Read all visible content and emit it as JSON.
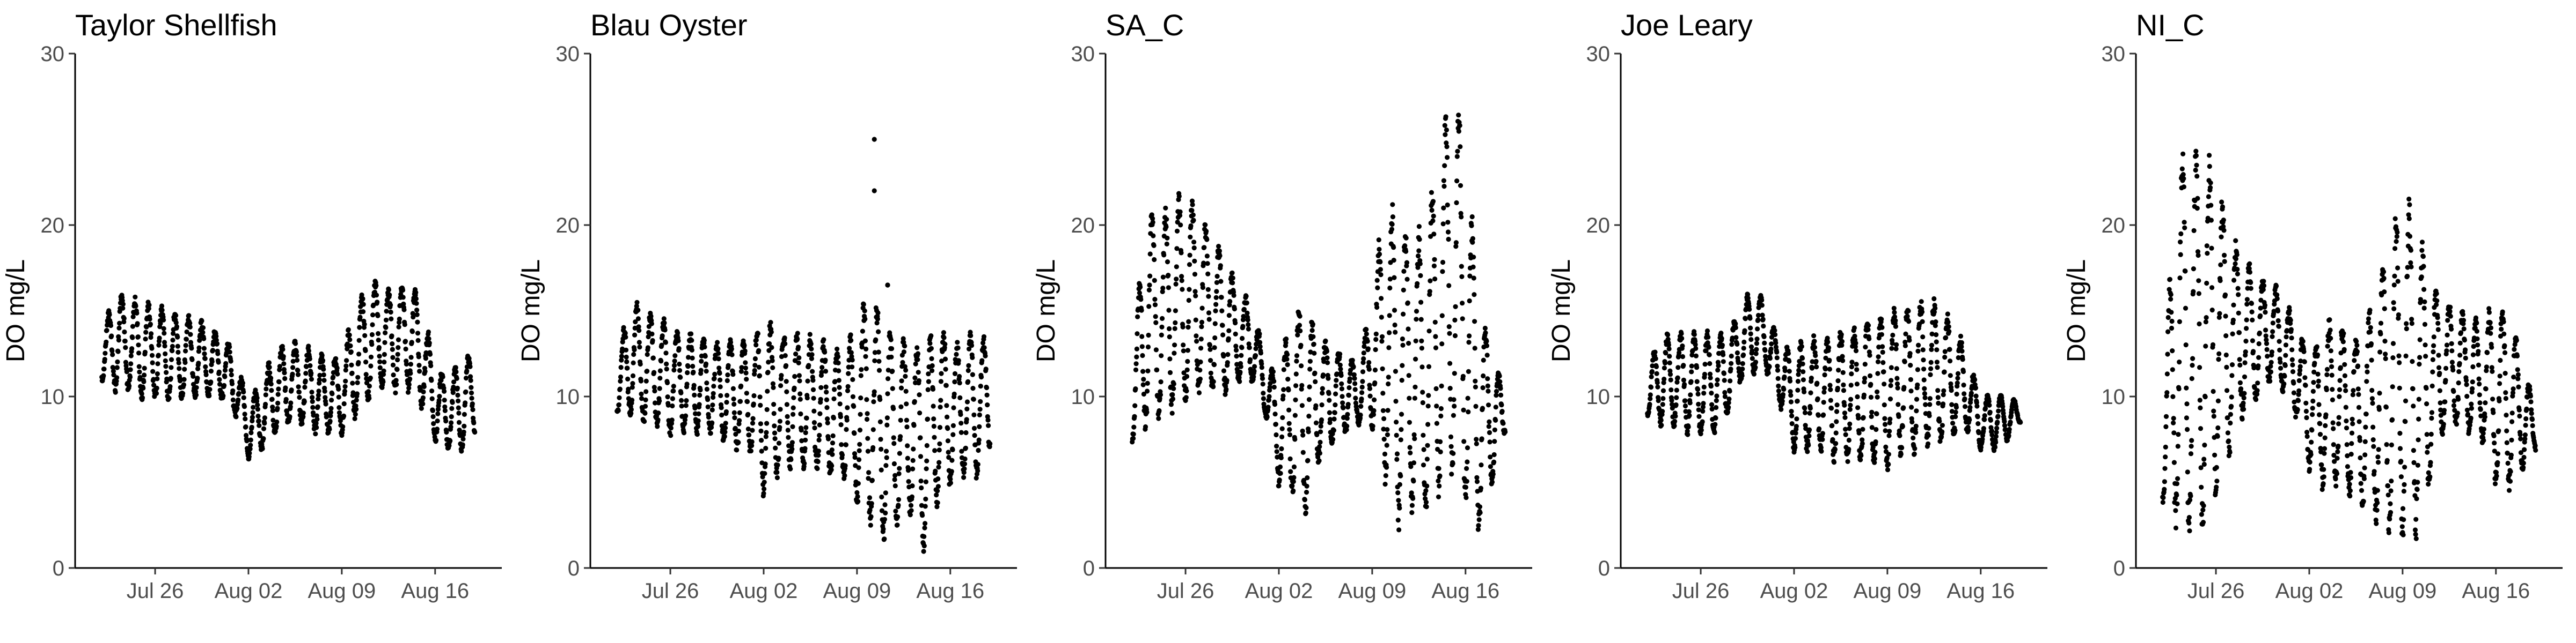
{
  "chart_data": [
    {
      "type": "scatter",
      "title": "Taylor Shellfish",
      "ylabel": "DO mg/L",
      "xlabel": "",
      "ylim": [
        0,
        30
      ],
      "yticks": [
        0,
        10,
        20,
        30
      ],
      "xlim": [
        "2021-07-20",
        "2021-08-21"
      ],
      "xticks": [
        {
          "date": "2021-07-26",
          "label": "Jul 26"
        },
        {
          "date": "2021-08-02",
          "label": "Aug 02"
        },
        {
          "date": "2021-08-09",
          "label": "Aug 09"
        },
        {
          "date": "2021-08-16",
          "label": "Aug 16"
        }
      ],
      "series": [
        {
          "x": [
            "2021-07-22",
            "2021-07-23",
            "2021-07-24",
            "2021-07-25",
            "2021-07-26",
            "2021-07-27",
            "2021-07-28",
            "2021-07-29",
            "2021-07-30",
            "2021-07-31",
            "2021-08-01",
            "2021-08-02",
            "2021-08-03",
            "2021-08-04",
            "2021-08-05",
            "2021-08-06",
            "2021-08-07",
            "2021-08-08",
            "2021-08-09",
            "2021-08-10",
            "2021-08-11",
            "2021-08-12",
            "2021-08-13",
            "2021-08-14",
            "2021-08-15",
            "2021-08-16",
            "2021-08-17",
            "2021-08-18",
            "2021-08-19"
          ],
          "low": [
            11,
            10.5,
            10.5,
            10,
            10,
            10,
            10,
            10,
            10,
            10,
            9,
            6.5,
            7,
            8,
            8.5,
            8.5,
            8,
            8,
            8,
            9,
            10,
            10.5,
            10.5,
            10.5,
            9.5,
            7.5,
            7,
            7,
            8
          ],
          "high": [
            13.5,
            16,
            15.5,
            15.5,
            15,
            15,
            14.5,
            14.5,
            14,
            13.5,
            12.5,
            9.5,
            11,
            12.5,
            13,
            13,
            12.5,
            12,
            12.5,
            15,
            16.5,
            16.5,
            16,
            16.5,
            15.5,
            11.5,
            11,
            12,
            12.5
          ]
        }
      ]
    },
    {
      "type": "scatter",
      "title": "Blau Oyster",
      "ylabel": "DO mg/L",
      "xlabel": "",
      "ylim": [
        0,
        30
      ],
      "yticks": [
        0,
        10,
        20,
        30
      ],
      "xlim": [
        "2021-07-20",
        "2021-08-21"
      ],
      "xticks": [
        {
          "date": "2021-07-26",
          "label": "Jul 26"
        },
        {
          "date": "2021-08-02",
          "label": "Aug 02"
        },
        {
          "date": "2021-08-09",
          "label": "Aug 09"
        },
        {
          "date": "2021-08-16",
          "label": "Aug 16"
        }
      ],
      "series": [
        {
          "x": [
            "2021-07-22",
            "2021-07-23",
            "2021-07-24",
            "2021-07-25",
            "2021-07-26",
            "2021-07-27",
            "2021-07-28",
            "2021-07-29",
            "2021-07-30",
            "2021-07-31",
            "2021-08-01",
            "2021-08-02",
            "2021-08-03",
            "2021-08-04",
            "2021-08-05",
            "2021-08-06",
            "2021-08-07",
            "2021-08-08",
            "2021-08-09",
            "2021-08-10",
            "2021-08-11",
            "2021-08-12",
            "2021-08-13",
            "2021-08-14",
            "2021-08-15",
            "2021-08-16",
            "2021-08-17",
            "2021-08-18",
            "2021-08-19"
          ],
          "low": [
            9,
            9,
            8.5,
            8.5,
            8,
            8,
            8,
            8,
            7.5,
            7,
            7,
            4.5,
            5.5,
            6,
            6,
            6,
            5.5,
            5.5,
            4,
            3,
            2,
            3,
            3.5,
            1.5,
            4,
            5,
            5.5,
            5.5,
            7
          ],
          "high": [
            12,
            15.5,
            15,
            14.5,
            14,
            13.5,
            13.5,
            13,
            13,
            13,
            13,
            14.5,
            13.5,
            13.5,
            13.5,
            13,
            13,
            12.5,
            14,
            16,
            14,
            13,
            13,
            12.5,
            14,
            13,
            13,
            14,
            12.5
          ]
        }
      ],
      "outliers": [
        {
          "x": "2021-08-10",
          "y": 25
        },
        {
          "x": "2021-08-10",
          "y": 22
        },
        {
          "x": "2021-08-11",
          "y": 16.5
        },
        {
          "x": "2021-08-11",
          "y": 16.5
        }
      ]
    },
    {
      "type": "scatter",
      "title": "SA_C",
      "ylabel": "DO mg/L",
      "xlabel": "",
      "ylim": [
        0,
        30
      ],
      "yticks": [
        0,
        10,
        20,
        30
      ],
      "xlim": [
        "2021-07-20",
        "2021-08-21"
      ],
      "xticks": [
        {
          "date": "2021-07-26",
          "label": "Jul 26"
        },
        {
          "date": "2021-08-02",
          "label": "Aug 02"
        },
        {
          "date": "2021-08-09",
          "label": "Aug 09"
        },
        {
          "date": "2021-08-16",
          "label": "Aug 16"
        }
      ],
      "series": [
        {
          "x": [
            "2021-07-22",
            "2021-07-23",
            "2021-07-24",
            "2021-07-25",
            "2021-07-26",
            "2021-07-27",
            "2021-07-28",
            "2021-07-29",
            "2021-07-30",
            "2021-07-31",
            "2021-08-01",
            "2021-08-02",
            "2021-08-03",
            "2021-08-04",
            "2021-08-05",
            "2021-08-06",
            "2021-08-07",
            "2021-08-08",
            "2021-08-09",
            "2021-08-10",
            "2021-08-11",
            "2021-08-12",
            "2021-08-13",
            "2021-08-14",
            "2021-08-15",
            "2021-08-16",
            "2021-08-17",
            "2021-08-18",
            "2021-08-19"
          ],
          "low": [
            7.5,
            8.5,
            9,
            9.5,
            10,
            10.5,
            10.5,
            10.5,
            11,
            11,
            9,
            5,
            4.5,
            3,
            6.5,
            7.5,
            8,
            8.5,
            8.5,
            5.5,
            3,
            4,
            3.5,
            5,
            6,
            4,
            2.5,
            5,
            8
          ],
          "high": [
            11,
            21,
            20,
            21,
            21.5,
            20.5,
            19,
            18,
            16,
            15.5,
            12,
            11,
            15,
            15,
            13.5,
            12.5,
            12.5,
            11.5,
            16,
            21,
            20,
            18.5,
            20,
            23,
            28.5,
            24.5,
            15,
            12.5,
            10
          ]
        }
      ]
    },
    {
      "type": "scatter",
      "title": "Joe Leary",
      "ylabel": "DO mg/L",
      "xlabel": "",
      "ylim": [
        0,
        30
      ],
      "yticks": [
        0,
        10,
        20,
        30
      ],
      "xlim": [
        "2021-07-20",
        "2021-08-21"
      ],
      "xticks": [
        {
          "date": "2021-07-26",
          "label": "Jul 26"
        },
        {
          "date": "2021-08-02",
          "label": "Aug 02"
        },
        {
          "date": "2021-08-09",
          "label": "Aug 09"
        },
        {
          "date": "2021-08-16",
          "label": "Aug 16"
        }
      ],
      "series": [
        {
          "x": [
            "2021-07-22",
            "2021-07-23",
            "2021-07-24",
            "2021-07-25",
            "2021-07-26",
            "2021-07-27",
            "2021-07-28",
            "2021-07-29",
            "2021-07-30",
            "2021-07-31",
            "2021-08-01",
            "2021-08-02",
            "2021-08-03",
            "2021-08-04",
            "2021-08-05",
            "2021-08-06",
            "2021-08-07",
            "2021-08-08",
            "2021-08-09",
            "2021-08-10",
            "2021-08-11",
            "2021-08-12",
            "2021-08-13",
            "2021-08-14",
            "2021-08-15",
            "2021-08-16",
            "2021-08-17",
            "2021-08-18",
            "2021-08-19"
          ],
          "low": [
            9,
            8.5,
            8.5,
            8,
            8,
            8,
            9,
            11,
            11.5,
            11.5,
            9.5,
            7,
            7,
            7,
            6.5,
            6.5,
            6.5,
            6.5,
            6,
            7,
            7,
            7.5,
            7.5,
            8,
            8,
            7,
            7,
            7.5,
            8.5
          ],
          "high": [
            11.5,
            13.5,
            13.5,
            13.5,
            13.5,
            13.5,
            13.5,
            15,
            16.5,
            15,
            13,
            12.5,
            13.5,
            13,
            13.5,
            13.5,
            14,
            14.5,
            14.5,
            15,
            15,
            15.5,
            15,
            14,
            12.5,
            10,
            10,
            10,
            9.5
          ]
        }
      ]
    },
    {
      "type": "scatter",
      "title": "NI_C",
      "ylabel": "DO mg/L",
      "xlabel": "",
      "ylim": [
        0,
        30
      ],
      "yticks": [
        0,
        10,
        20,
        30
      ],
      "xlim": [
        "2021-07-20",
        "2021-08-21"
      ],
      "xticks": [
        {
          "date": "2021-07-26",
          "label": "Jul 26"
        },
        {
          "date": "2021-08-02",
          "label": "Aug 02"
        },
        {
          "date": "2021-08-09",
          "label": "Aug 09"
        },
        {
          "date": "2021-08-16",
          "label": "Aug 16"
        }
      ],
      "series": [
        {
          "x": [
            "2021-07-22",
            "2021-07-23",
            "2021-07-24",
            "2021-07-25",
            "2021-07-26",
            "2021-07-27",
            "2021-07-28",
            "2021-07-29",
            "2021-07-30",
            "2021-07-31",
            "2021-08-01",
            "2021-08-02",
            "2021-08-03",
            "2021-08-04",
            "2021-08-05",
            "2021-08-06",
            "2021-08-07",
            "2021-08-08",
            "2021-08-09",
            "2021-08-10",
            "2021-08-11",
            "2021-08-12",
            "2021-08-13",
            "2021-08-14",
            "2021-08-15",
            "2021-08-16",
            "2021-08-17",
            "2021-08-18",
            "2021-08-19"
          ],
          "low": [
            4,
            3,
            2.5,
            3,
            5,
            7,
            9,
            10,
            11,
            10.5,
            9,
            6,
            5,
            5,
            4.5,
            4,
            3,
            2.5,
            2.5,
            2.5,
            5,
            8,
            8.5,
            8,
            7.5,
            5,
            5,
            6,
            7
          ],
          "high": [
            8,
            23.5,
            24,
            23.5,
            23,
            19,
            18,
            17,
            16.5,
            16,
            14,
            12.5,
            13.5,
            14.5,
            13.5,
            13,
            16,
            18.5,
            21.5,
            20,
            16.5,
            15.5,
            15,
            14.5,
            14,
            15.5,
            14.5,
            12,
            9
          ]
        }
      ]
    }
  ]
}
